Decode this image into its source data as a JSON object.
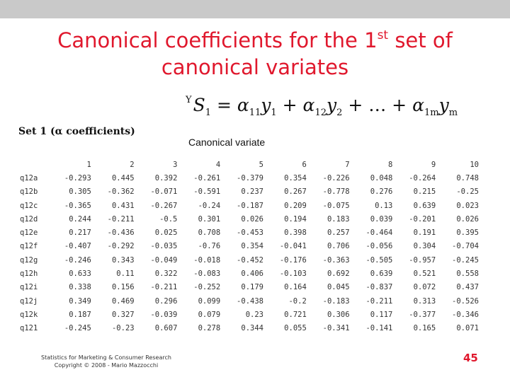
{
  "title": {
    "line1_text": "Canonical coefficients for the 1",
    "line1_sup": "st",
    "line1_tail": " set of",
    "line2": "canonical variates"
  },
  "formula": {
    "presup": "Y",
    "S": "S",
    "s_sub": "1",
    "equals": " = ",
    "alpha": "α",
    "a11": "11",
    "y": "y",
    "y1": "1",
    "plus": " + ",
    "a12": "12",
    "y2": "2",
    "dots": " + … + ",
    "a1m": "1m",
    "ym": "m"
  },
  "set_label": "Set 1 (α coefficients)",
  "canonical_label": "Canonical variate",
  "table": {
    "columns": [
      "1",
      "2",
      "3",
      "4",
      "5",
      "6",
      "7",
      "8",
      "9",
      "10"
    ],
    "rows": [
      {
        "label": "q12a",
        "values": [
          "-0.293",
          "0.445",
          "0.392",
          "-0.261",
          "-0.379",
          "0.354",
          "-0.226",
          "0.048",
          "-0.264",
          "0.748"
        ]
      },
      {
        "label": "q12b",
        "values": [
          "0.305",
          "-0.362",
          "-0.071",
          "-0.591",
          "0.237",
          "0.267",
          "-0.778",
          "0.276",
          "0.215",
          "-0.25"
        ]
      },
      {
        "label": "q12c",
        "values": [
          "-0.365",
          "0.431",
          "-0.267",
          "-0.24",
          "-0.187",
          "0.209",
          "-0.075",
          "0.13",
          "0.639",
          "0.023"
        ]
      },
      {
        "label": "q12d",
        "values": [
          "0.244",
          "-0.211",
          "-0.5",
          "0.301",
          "0.026",
          "0.194",
          "0.183",
          "0.039",
          "-0.201",
          "0.026"
        ]
      },
      {
        "label": "q12e",
        "values": [
          "0.217",
          "-0.436",
          "0.025",
          "0.708",
          "-0.453",
          "0.398",
          "0.257",
          "-0.464",
          "0.191",
          "0.395"
        ]
      },
      {
        "label": "q12f",
        "values": [
          "-0.407",
          "-0.292",
          "-0.035",
          "-0.76",
          "0.354",
          "-0.041",
          "0.706",
          "-0.056",
          "0.304",
          "-0.704"
        ]
      },
      {
        "label": "q12g",
        "values": [
          "-0.246",
          "0.343",
          "-0.049",
          "-0.018",
          "-0.452",
          "-0.176",
          "-0.363",
          "-0.505",
          "-0.957",
          "-0.245"
        ]
      },
      {
        "label": "q12h",
        "values": [
          "0.633",
          "0.11",
          "0.322",
          "-0.083",
          "0.406",
          "-0.103",
          "0.692",
          "0.639",
          "0.521",
          "0.558"
        ]
      },
      {
        "label": "q12i",
        "values": [
          "0.338",
          "0.156",
          "-0.211",
          "-0.252",
          "0.179",
          "0.164",
          "0.045",
          "-0.837",
          "0.072",
          "0.437"
        ]
      },
      {
        "label": "q12j",
        "values": [
          "0.349",
          "0.469",
          "0.296",
          "0.099",
          "-0.438",
          "-0.2",
          "-0.183",
          "-0.211",
          "0.313",
          "-0.526"
        ]
      },
      {
        "label": "q12k",
        "values": [
          "0.187",
          "0.327",
          "-0.039",
          "0.079",
          "0.23",
          "0.721",
          "0.306",
          "0.117",
          "-0.377",
          "-0.346"
        ]
      },
      {
        "label": "q121",
        "values": [
          "-0.245",
          "-0.23",
          "0.607",
          "0.278",
          "0.344",
          "0.055",
          "-0.341",
          "-0.141",
          "0.165",
          "0.071"
        ]
      }
    ]
  },
  "footer": {
    "line1": "Statistics for Marketing & Consumer Research",
    "line2": "Copyright © 2008 - Mario Mazzocchi"
  },
  "page_number": "45",
  "colors": {
    "title": "#e0182d",
    "top_bar": "#c9c9c9",
    "page_number": "#e0182d"
  }
}
